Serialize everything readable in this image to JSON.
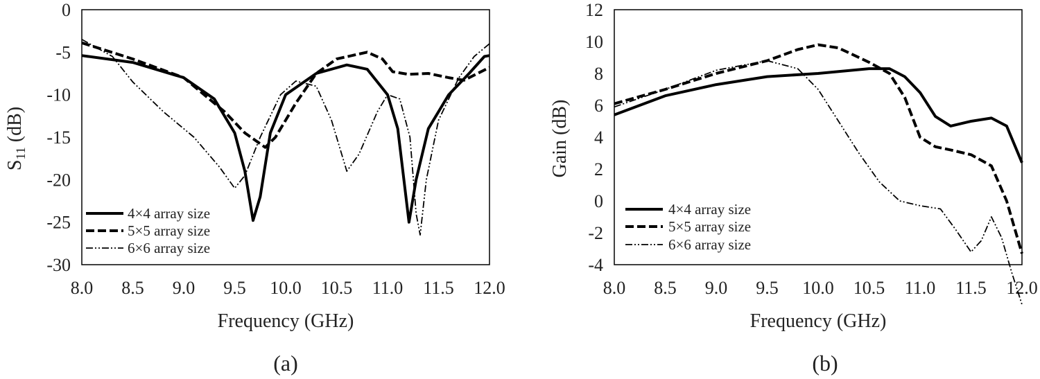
{
  "chart_data": [
    {
      "type": "line",
      "panel_label": "(a)",
      "xlabel": "Frequency (GHz)",
      "ylabel_main": "S",
      "ylabel_sub": "11",
      "ylabel_unit": " (dB)",
      "xlim": [
        8.0,
        12.0
      ],
      "ylim": [
        -30,
        0
      ],
      "xticks": [
        "8.0",
        "8.5",
        "9.0",
        "9.5",
        "10.0",
        "10.5",
        "11.0",
        "11.5",
        "12.0"
      ],
      "yticks": [
        "0",
        "-5",
        "-10",
        "-15",
        "-20",
        "-25",
        "-30"
      ],
      "legend_position": "bottom-left",
      "series": [
        {
          "name": "4×4 array size",
          "style": "solid",
          "points": [
            [
              8.0,
              -5.4
            ],
            [
              8.5,
              -6.2
            ],
            [
              9.0,
              -8.0
            ],
            [
              9.3,
              -10.5
            ],
            [
              9.5,
              -14.5
            ],
            [
              9.6,
              -19.0
            ],
            [
              9.68,
              -24.8
            ],
            [
              9.75,
              -22.0
            ],
            [
              9.85,
              -14.5
            ],
            [
              10.0,
              -10.0
            ],
            [
              10.3,
              -7.5
            ],
            [
              10.6,
              -6.5
            ],
            [
              10.8,
              -7.0
            ],
            [
              11.0,
              -10.0
            ],
            [
              11.1,
              -14.0
            ],
            [
              11.17,
              -21.0
            ],
            [
              11.21,
              -25.0
            ],
            [
              11.28,
              -20.0
            ],
            [
              11.4,
              -14.0
            ],
            [
              11.6,
              -10.0
            ],
            [
              11.8,
              -7.5
            ],
            [
              11.95,
              -5.5
            ],
            [
              12.0,
              -5.4
            ]
          ]
        },
        {
          "name": "5×5 array size",
          "style": "dashed",
          "points": [
            [
              8.0,
              -3.9
            ],
            [
              8.5,
              -5.8
            ],
            [
              9.0,
              -8.0
            ],
            [
              9.4,
              -12.0
            ],
            [
              9.6,
              -14.5
            ],
            [
              9.8,
              -16.2
            ],
            [
              9.9,
              -15.0
            ],
            [
              10.1,
              -11.0
            ],
            [
              10.3,
              -7.5
            ],
            [
              10.5,
              -5.8
            ],
            [
              10.8,
              -5.0
            ],
            [
              10.95,
              -5.8
            ],
            [
              11.05,
              -7.3
            ],
            [
              11.2,
              -7.6
            ],
            [
              11.4,
              -7.5
            ],
            [
              11.6,
              -8.0
            ],
            [
              11.75,
              -8.3
            ],
            [
              12.0,
              -6.8
            ]
          ]
        },
        {
          "name": "6×6 array size",
          "style": "dashdotdot",
          "points": [
            [
              8.0,
              -3.5
            ],
            [
              8.3,
              -5.5
            ],
            [
              8.5,
              -8.5
            ],
            [
              8.8,
              -12.0
            ],
            [
              9.1,
              -15.0
            ],
            [
              9.35,
              -18.5
            ],
            [
              9.5,
              -21.0
            ],
            [
              9.6,
              -19.5
            ],
            [
              9.75,
              -15.0
            ],
            [
              9.95,
              -10.0
            ],
            [
              10.1,
              -8.4
            ],
            [
              10.3,
              -9.0
            ],
            [
              10.45,
              -13.0
            ],
            [
              10.6,
              -19.0
            ],
            [
              10.72,
              -17.0
            ],
            [
              10.9,
              -12.0
            ],
            [
              11.0,
              -10.0
            ],
            [
              11.12,
              -10.5
            ],
            [
              11.22,
              -15.0
            ],
            [
              11.28,
              -24.0
            ],
            [
              11.32,
              -26.5
            ],
            [
              11.38,
              -20.0
            ],
            [
              11.5,
              -13.0
            ],
            [
              11.7,
              -8.0
            ],
            [
              11.85,
              -5.5
            ],
            [
              12.0,
              -4.0
            ]
          ]
        }
      ]
    },
    {
      "type": "line",
      "panel_label": "(b)",
      "xlabel": "Frequency (GHz)",
      "ylabel": "Gain (dB)",
      "xlim": [
        8.0,
        12.0
      ],
      "ylim": [
        -4,
        12
      ],
      "xticks": [
        "8.0",
        "8.5",
        "9.0",
        "9.5",
        "10.0",
        "10.5",
        "11.0",
        "11.5",
        "12.0"
      ],
      "yticks": [
        "12",
        "10",
        "8",
        "6",
        "4",
        "2",
        "0",
        "-2",
        "-4"
      ],
      "legend_position": "bottom-left",
      "series": [
        {
          "name": "4×4 array size",
          "style": "solid",
          "points": [
            [
              8.0,
              5.4
            ],
            [
              8.5,
              6.6
            ],
            [
              9.0,
              7.3
            ],
            [
              9.5,
              7.8
            ],
            [
              10.0,
              8.0
            ],
            [
              10.5,
              8.3
            ],
            [
              10.7,
              8.3
            ],
            [
              10.85,
              7.8
            ],
            [
              11.0,
              6.8
            ],
            [
              11.15,
              5.3
            ],
            [
              11.3,
              4.7
            ],
            [
              11.5,
              5.0
            ],
            [
              11.7,
              5.2
            ],
            [
              11.85,
              4.7
            ],
            [
              12.0,
              2.4
            ]
          ]
        },
        {
          "name": "5×5 array size",
          "style": "dashed",
          "points": [
            [
              8.0,
              6.1
            ],
            [
              8.5,
              7.0
            ],
            [
              9.0,
              8.0
            ],
            [
              9.5,
              8.8
            ],
            [
              9.8,
              9.5
            ],
            [
              10.0,
              9.8
            ],
            [
              10.2,
              9.6
            ],
            [
              10.5,
              8.7
            ],
            [
              10.7,
              8.0
            ],
            [
              10.85,
              6.5
            ],
            [
              11.0,
              4.0
            ],
            [
              11.15,
              3.4
            ],
            [
              11.3,
              3.2
            ],
            [
              11.5,
              2.9
            ],
            [
              11.7,
              2.2
            ],
            [
              11.85,
              0.0
            ],
            [
              12.0,
              -3.3
            ]
          ]
        },
        {
          "name": "6×6 array size",
          "style": "dashdotdot",
          "points": [
            [
              8.0,
              5.9
            ],
            [
              8.5,
              7.0
            ],
            [
              9.0,
              8.2
            ],
            [
              9.5,
              8.8
            ],
            [
              9.8,
              8.3
            ],
            [
              10.0,
              7.0
            ],
            [
              10.2,
              5.0
            ],
            [
              10.4,
              3.0
            ],
            [
              10.6,
              1.2
            ],
            [
              10.8,
              0.0
            ],
            [
              11.0,
              -0.3
            ],
            [
              11.2,
              -0.5
            ],
            [
              11.35,
              -1.8
            ],
            [
              11.5,
              -3.2
            ],
            [
              11.6,
              -2.5
            ],
            [
              11.7,
              -1.0
            ],
            [
              11.8,
              -2.3
            ],
            [
              11.9,
              -4.5
            ],
            [
              12.0,
              -6.5
            ]
          ]
        }
      ]
    }
  ]
}
